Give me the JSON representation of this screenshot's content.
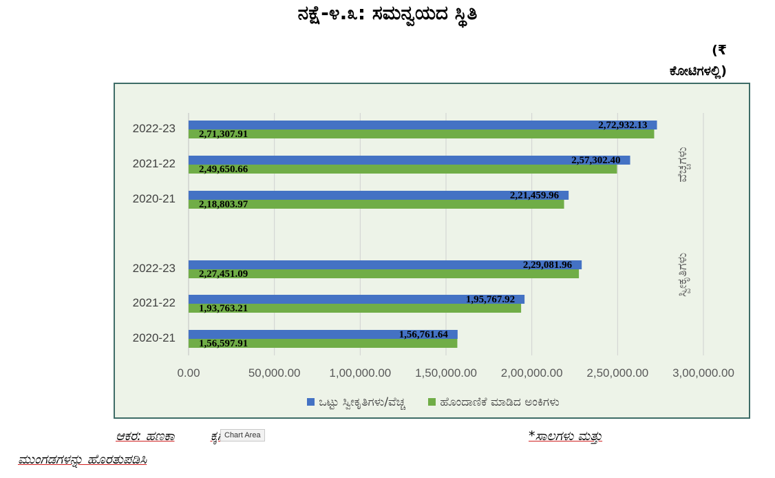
{
  "page_title": "ನಕ್ಷೆ-೪.೩: ಸಮನ್ವಯದ ಸ್ಥಿತಿ",
  "unit_note": {
    "line1": "(₹",
    "line2": "ಕೋಟಿಗಳಲ್ಲಿ)"
  },
  "tooltip": "Chart Area",
  "footnotes": {
    "source": "ಆಕರ: ಹಣಕಾ",
    "source_tail": "ಕ್ಕಗಳು",
    "note_right": "*ಸಾಲಗಳು ಮತ್ತು",
    "note_second_line": "ಮುಂಗಡಗಳನ್ನು ಹೊರತುಪಡಿಸಿ"
  },
  "colors": {
    "receipts": "#4472c4",
    "reconciled": "#70ad47"
  },
  "chart_data": {
    "type": "bar",
    "orientation": "horizontal",
    "xlim": [
      0,
      300000
    ],
    "x_ticks": [
      "0.00",
      "50,000.00",
      "1,00,000.00",
      "1,50,000.00",
      "2,00,000.00",
      "2,50,000.00",
      "3,00,000.00"
    ],
    "grid": true,
    "legend_position": "bottom",
    "legend": [
      "ಒಟ್ಟು ಸ್ವೀಕೃತಿಗಳು/ವೆಚ್ಚ",
      "ಹೊಂದಾಣಿಕೆ ಮಾಡಿದ ಅಂಕಿಗಳು"
    ],
    "groups": [
      {
        "name": "ವೆಚ್ಚಗಳು",
        "categories": [
          "2022-23",
          "2021-22",
          "2020-21"
        ],
        "series": [
          {
            "name": "ಒಟ್ಟು ಸ್ವೀಕೃತಿಗಳು/ವೆಚ್ಚ",
            "values": [
              272932.13,
              257302.4,
              221459.96
            ],
            "labels": [
              "2,72,932.13",
              "2,57,302.40",
              "2,21,459.96"
            ]
          },
          {
            "name": "ಹೊಂದಾಣಿಕೆ ಮಾಡಿದ ಅಂಕಿಗಳು",
            "values": [
              271307.91,
              249650.66,
              218803.97
            ],
            "labels": [
              "2,71,307.91",
              "2,49,650.66",
              "2,18,803.97"
            ]
          }
        ]
      },
      {
        "name": "ಸ್ವೀಕೃತಿಗಳು",
        "categories": [
          "2022-23",
          "2021-22",
          "2020-21"
        ],
        "series": [
          {
            "name": "ಒಟ್ಟು ಸ್ವೀಕೃತಿಗಳು/ವೆಚ್ಚ",
            "values": [
              229081.96,
              195767.92,
              156761.64
            ],
            "labels": [
              "2,29,081.96",
              "1,95,767.92",
              "1,56,761.64"
            ]
          },
          {
            "name": "ಹೊಂದಾಣಿಕೆ ಮಾಡಿದ ಅಂಕಿಗಳು",
            "values": [
              227451.09,
              193763.21,
              156597.91
            ],
            "labels": [
              "2,27,451.09",
              "1,93,763.21",
              "1,56,597.91"
            ]
          }
        ]
      }
    ]
  }
}
